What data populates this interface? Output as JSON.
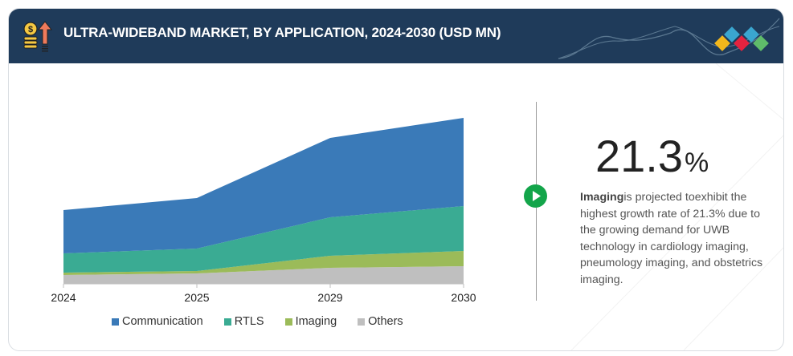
{
  "header": {
    "title": "ULTRA-WIDEBAND MARKET, BY APPLICATION, 2024-2030 (USD MN)",
    "icon": "money-growth-icon",
    "logo_colors": [
      "#f3b71c",
      "#3aa6cf",
      "#e4233f",
      "#3aa6cf",
      "#5fbc6a"
    ]
  },
  "highlight": {
    "value": "21.3",
    "unit": "%",
    "lead": "Imaging",
    "text": "is projected toexhibit the highest growth rate of 21.3% due to the growing demand for UWB technology in cardiology imaging, pneumology imaging, and obstetrics imaging.",
    "play_icon_color": "#13a54a"
  },
  "chart_data": {
    "type": "area",
    "stacked": true,
    "title": "ULTRA-WIDEBAND MARKET, BY APPLICATION, 2024-2030 (USD MN)",
    "xlabel": "",
    "ylabel": "",
    "y_axis_shown": false,
    "grid": false,
    "value_note": "No value axis or data labels shown; values are estimated relative stacked magnitudes",
    "categories": [
      "2024",
      "2025",
      "2029",
      "2030"
    ],
    "series": [
      {
        "name": "Others",
        "color": "#bfbfbf",
        "values": [
          11,
          13,
          20,
          22
        ]
      },
      {
        "name": "Imaging",
        "color": "#9bbb59",
        "values": [
          3,
          3,
          15,
          19
        ]
      },
      {
        "name": "RTLS",
        "color": "#3aab93",
        "values": [
          24,
          28,
          48,
          56
        ]
      },
      {
        "name": "Communication",
        "color": "#3a7ab8",
        "values": [
          54,
          63,
          99,
          110
        ]
      }
    ],
    "ylim": [
      0,
      210
    ],
    "legend": {
      "position": "bottom",
      "order": [
        "Communication",
        "RTLS",
        "Imaging",
        "Others"
      ]
    }
  }
}
